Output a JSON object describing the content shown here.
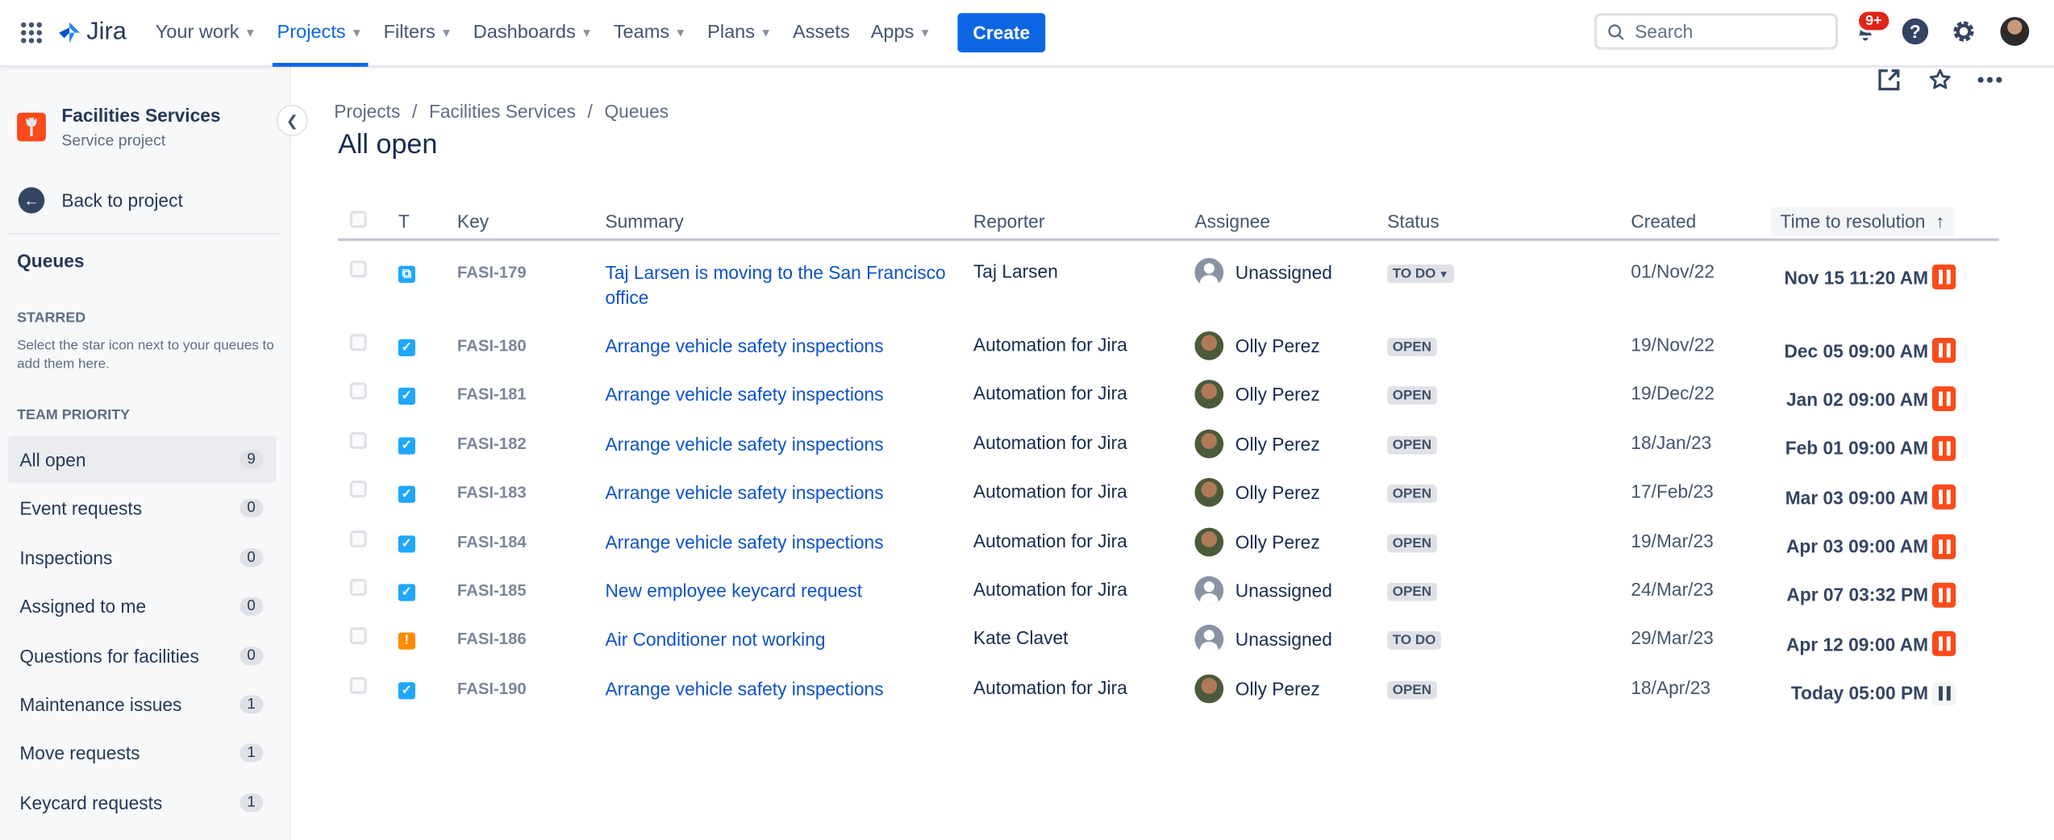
{
  "topbar": {
    "app_name": "Jira",
    "nav": [
      {
        "label": "Your work",
        "dropdown": true
      },
      {
        "label": "Projects",
        "dropdown": true,
        "active": true
      },
      {
        "label": "Filters",
        "dropdown": true
      },
      {
        "label": "Dashboards",
        "dropdown": true
      },
      {
        "label": "Teams",
        "dropdown": true
      },
      {
        "label": "Plans",
        "dropdown": true
      },
      {
        "label": "Assets",
        "dropdown": false
      },
      {
        "label": "Apps",
        "dropdown": true
      }
    ],
    "create_label": "Create",
    "search_placeholder": "Search",
    "notifications_badge": "9+",
    "icons": [
      "app-switcher-icon",
      "notifications-icon",
      "help-icon",
      "settings-icon",
      "profile-avatar"
    ]
  },
  "sidebar": {
    "project_name": "Facilities Services",
    "project_type": "Service project",
    "back_label": "Back to project",
    "queues_heading": "Queues",
    "starred_heading": "STARRED",
    "starred_note": "Select the star icon next to your queues to add them here.",
    "team_priority_heading": "TEAM PRIORITY",
    "queues": [
      {
        "label": "All open",
        "count": "9",
        "active": true
      },
      {
        "label": "Event requests",
        "count": "0"
      },
      {
        "label": "Inspections",
        "count": "0"
      },
      {
        "label": "Assigned to me",
        "count": "0"
      },
      {
        "label": "Questions for facilities",
        "count": "0"
      },
      {
        "label": "Maintenance issues",
        "count": "1"
      },
      {
        "label": "Move requests",
        "count": "1"
      },
      {
        "label": "Keycard requests",
        "count": "1"
      }
    ]
  },
  "main": {
    "breadcrumbs": [
      "Projects",
      "Facilities Services",
      "Queues"
    ],
    "breadcrumb_sep": "/",
    "title": "All open",
    "actions": [
      "share-icon",
      "star-icon",
      "more-icon"
    ],
    "columns": {
      "type": "T",
      "key": "Key",
      "summary": "Summary",
      "reporter": "Reporter",
      "assignee": "Assignee",
      "status": "Status",
      "created": "Created",
      "time_to_resolution": "Time to resolution",
      "sort_arrow": "↑"
    },
    "rows": [
      {
        "type": "move",
        "key": "FASI-179",
        "summary": "Taj Larsen is moving to the San Francisco office",
        "reporter": "Taj Larsen",
        "assignee": "Unassigned",
        "status": "TO DO",
        "status_dropdown": true,
        "created": "01/Nov/22",
        "ttr": "Nov 15 11:20 AM",
        "breached": true
      },
      {
        "type": "task",
        "key": "FASI-180",
        "summary": "Arrange vehicle safety inspections",
        "reporter": "Automation for Jira",
        "assignee": "Olly Perez",
        "status": "OPEN",
        "created": "19/Nov/22",
        "ttr": "Dec 05 09:00 AM",
        "breached": true
      },
      {
        "type": "task",
        "key": "FASI-181",
        "summary": "Arrange vehicle safety inspections",
        "reporter": "Automation for Jira",
        "assignee": "Olly Perez",
        "status": "OPEN",
        "created": "19/Dec/22",
        "ttr": "Jan 02 09:00 AM",
        "breached": true
      },
      {
        "type": "task",
        "key": "FASI-182",
        "summary": "Arrange vehicle safety inspections",
        "reporter": "Automation for Jira",
        "assignee": "Olly Perez",
        "status": "OPEN",
        "created": "18/Jan/23",
        "ttr": "Feb 01 09:00 AM",
        "breached": true
      },
      {
        "type": "task",
        "key": "FASI-183",
        "summary": "Arrange vehicle safety inspections",
        "reporter": "Automation for Jira",
        "assignee": "Olly Perez",
        "status": "OPEN",
        "created": "17/Feb/23",
        "ttr": "Mar 03 09:00 AM",
        "breached": true
      },
      {
        "type": "task",
        "key": "FASI-184",
        "summary": "Arrange vehicle safety inspections",
        "reporter": "Automation for Jira",
        "assignee": "Olly Perez",
        "status": "OPEN",
        "created": "19/Mar/23",
        "ttr": "Apr 03 09:00 AM",
        "breached": true
      },
      {
        "type": "task",
        "key": "FASI-185",
        "summary": "New employee keycard request",
        "reporter": "Automation for Jira",
        "assignee": "Unassigned",
        "status": "OPEN",
        "created": "24/Mar/23",
        "ttr": "Apr 07 03:32 PM",
        "breached": true
      },
      {
        "type": "incident",
        "key": "FASI-186",
        "summary": "Air Conditioner not working",
        "reporter": "Kate Clavet",
        "assignee": "Unassigned",
        "status": "TO DO",
        "created": "29/Mar/23",
        "ttr": "Apr 12 09:00 AM",
        "breached": true
      },
      {
        "type": "task",
        "key": "FASI-190",
        "summary": "Arrange vehicle safety inspections",
        "reporter": "Automation for Jira",
        "assignee": "Olly Perez",
        "status": "OPEN",
        "created": "18/Apr/23",
        "ttr": "Today 05:00 PM",
        "breached": false
      }
    ]
  },
  "colors": {
    "primary": "#0c66e4",
    "breached": "#fc4a1a",
    "task_icon": "#1ea7fd",
    "incident_icon": "#ff8b00",
    "link": "#0c52cc"
  }
}
